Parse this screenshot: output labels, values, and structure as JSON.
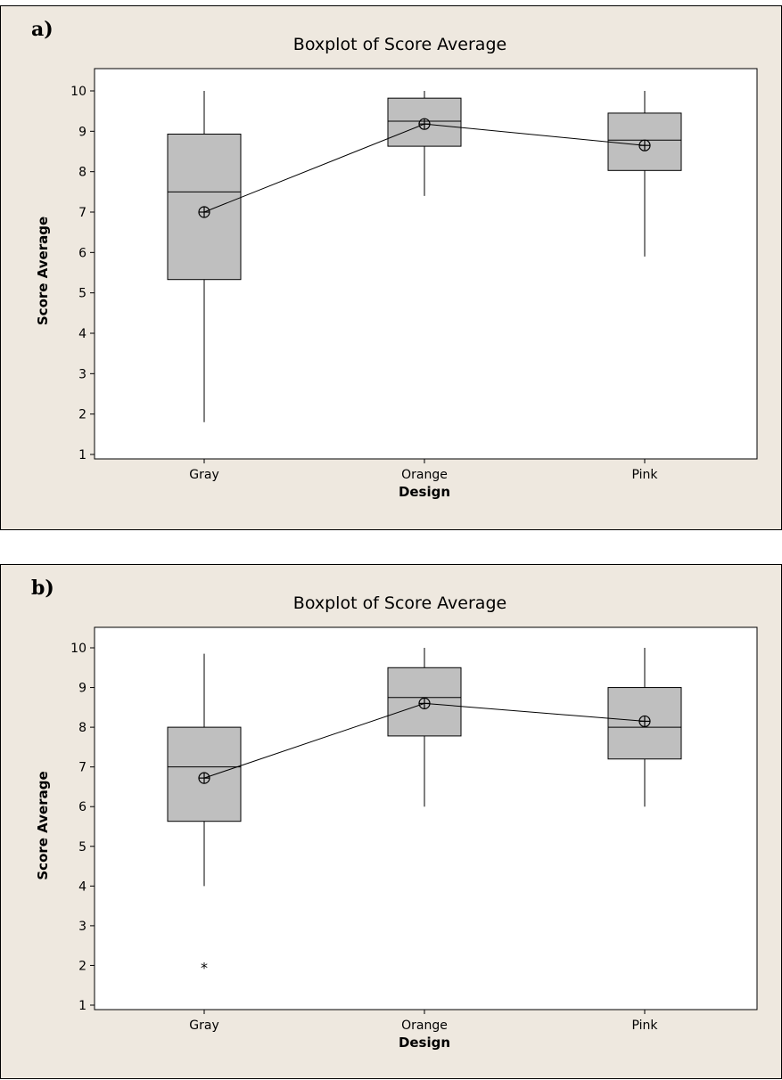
{
  "chart_data": [
    {
      "panel_label": "a)",
      "type": "boxplot",
      "title": "Boxplot of Score Average",
      "xlabel": "Design",
      "ylabel": "Score Average",
      "ylim": [
        1,
        10
      ],
      "yticks": [
        "1",
        "2",
        "3",
        "4",
        "5",
        "6",
        "7",
        "8",
        "9",
        "10"
      ],
      "categories": [
        "Gray",
        "Orange",
        "Pink"
      ],
      "boxes": [
        {
          "category": "Gray",
          "min": 1.8,
          "q1": 5.33,
          "median": 7.5,
          "q3": 8.93,
          "max": 10.0,
          "mean": 7.0,
          "outliers": []
        },
        {
          "category": "Orange",
          "min": 7.4,
          "q1": 8.63,
          "median": 9.25,
          "q3": 9.82,
          "max": 10.0,
          "mean": 9.18,
          "outliers": []
        },
        {
          "category": "Pink",
          "min": 5.9,
          "q1": 8.03,
          "median": 8.78,
          "q3": 9.45,
          "max": 10.0,
          "mean": 8.65,
          "outliers": []
        }
      ],
      "mean_connect_line": true,
      "grid": false
    },
    {
      "panel_label": "b)",
      "type": "boxplot",
      "title": "Boxplot of Score Average",
      "xlabel": "Design",
      "ylabel": "Score Average",
      "ylim": [
        1,
        10
      ],
      "yticks": [
        "1",
        "2",
        "3",
        "4",
        "5",
        "6",
        "7",
        "8",
        "9",
        "10"
      ],
      "categories": [
        "Gray",
        "Orange",
        "Pink"
      ],
      "boxes": [
        {
          "category": "Gray",
          "min": 4.0,
          "q1": 5.63,
          "median": 7.0,
          "q3": 8.0,
          "max": 9.85,
          "mean": 6.72,
          "outliers": [
            2.0
          ]
        },
        {
          "category": "Orange",
          "min": 6.0,
          "q1": 7.78,
          "median": 8.75,
          "q3": 9.5,
          "max": 10.0,
          "mean": 8.6,
          "outliers": []
        },
        {
          "category": "Pink",
          "min": 6.0,
          "q1": 7.2,
          "median": 8.0,
          "q3": 9.0,
          "max": 10.0,
          "mean": 8.15,
          "outliers": []
        }
      ],
      "mean_connect_line": true,
      "grid": false
    }
  ],
  "colors": {
    "background": "#eee8df",
    "plot_area": "#ffffff",
    "box_fill": "#bfbfbf",
    "ink": "#000000"
  }
}
